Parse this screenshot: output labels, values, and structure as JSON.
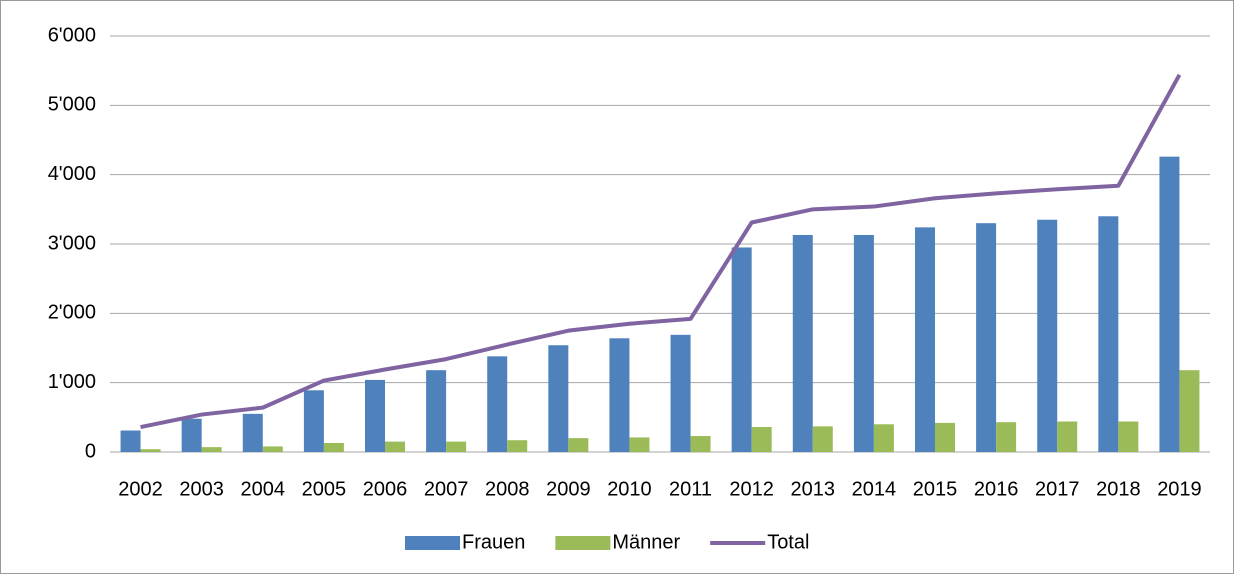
{
  "chart_data": {
    "type": "bar_line",
    "categories": [
      "2002",
      "2003",
      "2004",
      "2005",
      "2006",
      "2007",
      "2008",
      "2009",
      "2010",
      "2011",
      "2012",
      "2013",
      "2014",
      "2015",
      "2016",
      "2017",
      "2018",
      "2019"
    ],
    "series": [
      {
        "name": "Frauen",
        "type": "bar",
        "color": "#4f81bd",
        "values": [
          310,
          480,
          550,
          890,
          1040,
          1180,
          1380,
          1540,
          1640,
          1690,
          2950,
          3130,
          3130,
          3240,
          3300,
          3350,
          3400,
          4260
        ]
      },
      {
        "name": "Männer",
        "type": "bar",
        "color": "#9bbb59",
        "values": [
          40,
          70,
          80,
          130,
          150,
          150,
          170,
          200,
          210,
          230,
          360,
          370,
          400,
          420,
          430,
          440,
          440,
          1180
        ]
      },
      {
        "name": "Total",
        "type": "line",
        "color": "#8064a2",
        "values": [
          360,
          540,
          640,
          1030,
          1190,
          1340,
          1550,
          1750,
          1850,
          1920,
          3310,
          3500,
          3540,
          3660,
          3730,
          3790,
          3840,
          5440
        ]
      }
    ],
    "ylim": [
      0,
      6000
    ],
    "yticks": [
      0,
      {
        "value": 1000,
        "label": "1'000"
      },
      {
        "value": 2000,
        "label": "2'000"
      },
      {
        "value": 3000,
        "label": "3'000"
      },
      {
        "value": 4000,
        "label": "4'000"
      },
      {
        "value": 5000,
        "label": "5'000"
      },
      {
        "value": 6000,
        "label": "6'000"
      }
    ],
    "grid": true,
    "legend": "bottom"
  }
}
